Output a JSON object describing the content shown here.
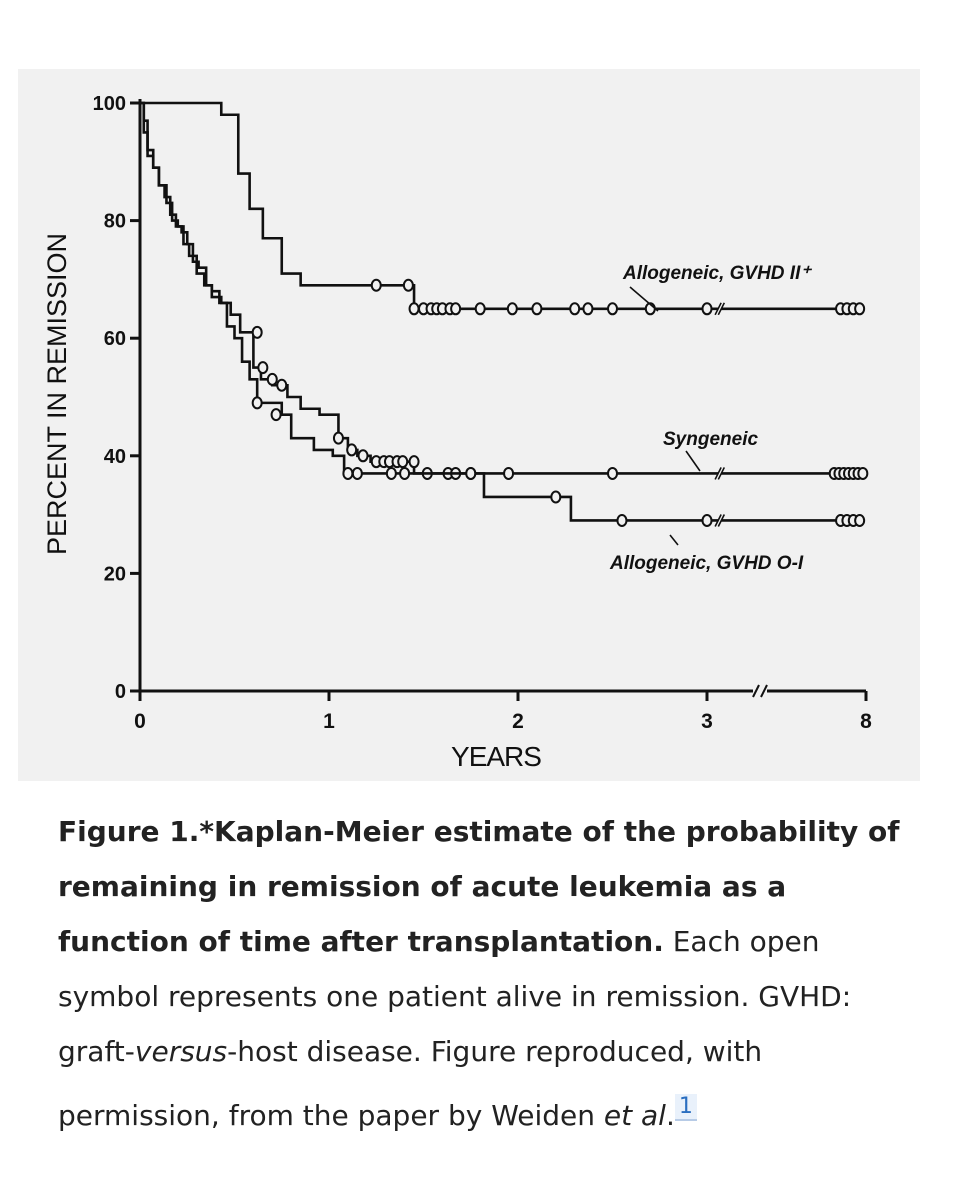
{
  "chart_data": {
    "type": "line",
    "xlabel": "YEARS",
    "ylabel": "PERCENT IN REMISSION",
    "ylim": [
      0,
      100
    ],
    "y_ticks": [
      0,
      20,
      40,
      60,
      80,
      100
    ],
    "x_ticks": [
      "0",
      "1",
      "2",
      "3",
      "8"
    ],
    "x_axis_break": "between 3 and 8 years",
    "grid": false,
    "legend": "inline labels with leader lines",
    "series": [
      {
        "name": "Allogeneic, GVHD II⁺",
        "steps": [
          [
            0,
            100
          ],
          [
            0.28,
            100
          ],
          [
            0.43,
            98
          ],
          [
            0.52,
            88
          ],
          [
            0.58,
            82
          ],
          [
            0.65,
            77
          ],
          [
            0.75,
            71
          ],
          [
            0.85,
            69
          ],
          [
            1.45,
            65
          ],
          [
            3.4,
            65
          ],
          [
            8,
            65
          ]
        ],
        "censored": [
          [
            1.25,
            69
          ],
          [
            1.42,
            69
          ],
          [
            1.45,
            65
          ],
          [
            1.5,
            65
          ],
          [
            1.54,
            65
          ],
          [
            1.57,
            65
          ],
          [
            1.6,
            65
          ],
          [
            1.64,
            65
          ],
          [
            1.67,
            65
          ],
          [
            1.8,
            65
          ],
          [
            1.97,
            65
          ],
          [
            2.1,
            65
          ],
          [
            2.3,
            65
          ],
          [
            2.37,
            65
          ],
          [
            2.5,
            65
          ],
          [
            2.7,
            65
          ],
          [
            3.0,
            65
          ],
          [
            7.2,
            65
          ],
          [
            7.4,
            65
          ],
          [
            7.6,
            65
          ],
          [
            7.8,
            65
          ]
        ]
      },
      {
        "name": "Syngeneic",
        "steps": [
          [
            0,
            100
          ],
          [
            0.02,
            97
          ],
          [
            0.04,
            92
          ],
          [
            0.07,
            89
          ],
          [
            0.1,
            86
          ],
          [
            0.14,
            83
          ],
          [
            0.17,
            80
          ],
          [
            0.2,
            79
          ],
          [
            0.23,
            76
          ],
          [
            0.26,
            74
          ],
          [
            0.3,
            71
          ],
          [
            0.34,
            69
          ],
          [
            0.38,
            67
          ],
          [
            0.43,
            66
          ],
          [
            0.48,
            64
          ],
          [
            0.53,
            61
          ],
          [
            0.6,
            55
          ],
          [
            0.64,
            53
          ],
          [
            0.7,
            52
          ],
          [
            0.78,
            50
          ],
          [
            0.85,
            48
          ],
          [
            0.95,
            47
          ],
          [
            1.05,
            43
          ],
          [
            1.1,
            41
          ],
          [
            1.15,
            40
          ],
          [
            1.22,
            39
          ],
          [
            1.3,
            39
          ],
          [
            1.45,
            37
          ],
          [
            1.68,
            37
          ],
          [
            3.4,
            37
          ],
          [
            8,
            37
          ]
        ],
        "censored": [
          [
            0.62,
            61
          ],
          [
            0.65,
            55
          ],
          [
            0.7,
            53
          ],
          [
            0.75,
            52
          ],
          [
            1.05,
            43
          ],
          [
            1.12,
            41
          ],
          [
            1.18,
            40
          ],
          [
            1.25,
            39
          ],
          [
            1.29,
            39
          ],
          [
            1.32,
            39
          ],
          [
            1.36,
            39
          ],
          [
            1.39,
            39
          ],
          [
            1.45,
            39
          ],
          [
            1.52,
            37
          ],
          [
            1.63,
            37
          ],
          [
            1.67,
            37
          ],
          [
            1.75,
            37
          ],
          [
            1.95,
            37
          ],
          [
            2.5,
            37
          ],
          [
            7.0,
            37
          ],
          [
            7.15,
            37
          ],
          [
            7.3,
            37
          ],
          [
            7.45,
            37
          ],
          [
            7.6,
            37
          ],
          [
            7.75,
            37
          ],
          [
            7.9,
            37
          ]
        ]
      },
      {
        "name": "Allogeneic, GVHD O-I",
        "steps": [
          [
            0,
            100
          ],
          [
            0.02,
            95
          ],
          [
            0.04,
            91
          ],
          [
            0.07,
            89
          ],
          [
            0.1,
            86
          ],
          [
            0.13,
            84
          ],
          [
            0.16,
            81
          ],
          [
            0.19,
            79
          ],
          [
            0.22,
            78
          ],
          [
            0.25,
            76
          ],
          [
            0.28,
            73
          ],
          [
            0.31,
            72
          ],
          [
            0.35,
            69
          ],
          [
            0.38,
            68
          ],
          [
            0.42,
            66
          ],
          [
            0.46,
            62
          ],
          [
            0.5,
            60
          ],
          [
            0.54,
            56
          ],
          [
            0.58,
            53
          ],
          [
            0.62,
            49
          ],
          [
            0.75,
            47
          ],
          [
            0.8,
            43
          ],
          [
            0.92,
            41
          ],
          [
            1.02,
            40
          ],
          [
            1.08,
            37
          ],
          [
            1.78,
            37
          ],
          [
            1.82,
            33
          ],
          [
            2.2,
            33
          ],
          [
            2.28,
            29
          ],
          [
            3.4,
            29
          ],
          [
            8,
            29
          ]
        ],
        "censored": [
          [
            0.62,
            49
          ],
          [
            0.72,
            47
          ],
          [
            1.1,
            37
          ],
          [
            1.15,
            37
          ],
          [
            1.33,
            37
          ],
          [
            1.4,
            37
          ],
          [
            1.75,
            37
          ],
          [
            2.2,
            33
          ],
          [
            2.55,
            29
          ],
          [
            3.0,
            29
          ],
          [
            7.2,
            29
          ],
          [
            7.4,
            29
          ],
          [
            7.6,
            29
          ],
          [
            7.8,
            29
          ]
        ]
      }
    ]
  },
  "caption": {
    "label": "Figure 1.",
    "title": "*Kaplan-Meier estimate of the probability of remaining in remission of acute leukemia as a function of time after transplantation.",
    "text_1": " Each open symbol represents one patient alive in remission. GVHD: graft-",
    "text_italic_1": "versus",
    "text_2": "-host disease. Figure reproduced, with permission, from the paper by Weiden ",
    "text_italic_2": "et al",
    "text_3": ".",
    "ref": "1"
  }
}
